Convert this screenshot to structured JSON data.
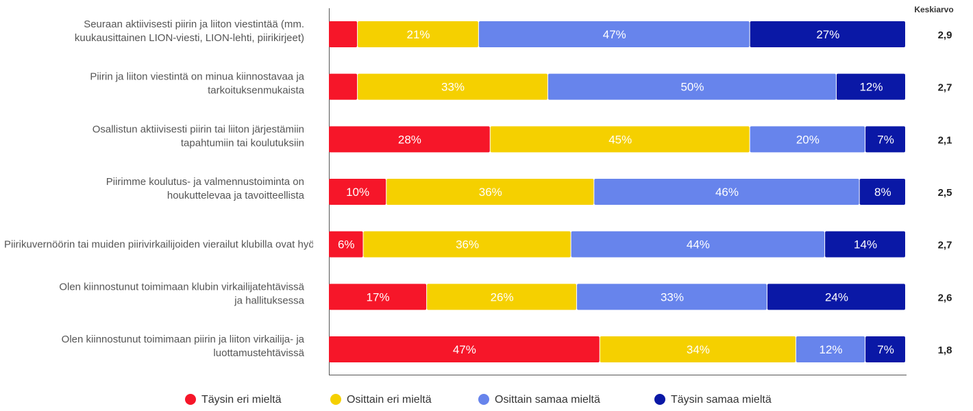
{
  "chart_data": {
    "type": "bar",
    "orientation": "horizontal",
    "stacked": true,
    "mean_column_header": "Keskiarvo",
    "categories": [
      [
        "Seuraan aktiivisesti piirin ja liiton viestintää (mm.",
        "kuukausittainen LION-viesti, LION-lehti, piirikirjeet)"
      ],
      [
        "Piirin ja liiton viestintä on minua kiinnostavaa ja",
        "tarkoituksenmukaista"
      ],
      [
        "Osallistun aktiivisesti piirin tai liiton järjestämiin",
        "tapahtumiin tai koulutuksiin"
      ],
      [
        "Piirimme koulutus- ja valmennustoiminta on",
        "houkuttelevaa ja tavoitteellista"
      ],
      [
        "Piirikuvernöörin tai muiden piirivirkailijoiden vierailut klubilla ovat hyödyllisiä"
      ],
      [
        "Olen kiinnostunut toimimaan klubin virkailijatehtävissä",
        "ja hallituksessa"
      ],
      [
        "Olen kiinnostunut toimimaan piirin ja liiton virkailija- ja",
        "luottamustehtävissä"
      ]
    ],
    "series": [
      {
        "name": "Täysin eri mieltä",
        "color": "#f61629",
        "values": [
          5,
          5,
          28,
          10,
          6,
          17,
          47
        ],
        "labels": [
          "",
          "",
          "28%",
          "10%",
          "6%",
          "17%",
          "47%"
        ]
      },
      {
        "name": "Osittain eri mieltä",
        "color": "#f5d000",
        "values": [
          21,
          33,
          45,
          36,
          36,
          26,
          34
        ],
        "labels": [
          "21%",
          "33%",
          "45%",
          "36%",
          "36%",
          "26%",
          "34%"
        ]
      },
      {
        "name": "Osittain samaa mieltä",
        "color": "#6784ec",
        "values": [
          47,
          50,
          20,
          46,
          44,
          33,
          12
        ],
        "labels": [
          "47%",
          "50%",
          "20%",
          "46%",
          "44%",
          "33%",
          "12%"
        ]
      },
      {
        "name": "Täysin samaa mieltä",
        "color": "#0a18a6",
        "values": [
          27,
          12,
          7,
          8,
          14,
          24,
          7
        ],
        "labels": [
          "27%",
          "12%",
          "7%",
          "8%",
          "14%",
          "24%",
          "7%"
        ]
      }
    ],
    "means": [
      "2,9",
      "2,7",
      "2,1",
      "2,5",
      "2,7",
      "2,6",
      "1,8"
    ],
    "xlim": [
      0,
      100
    ],
    "legend_position": "bottom",
    "grid": false
  }
}
